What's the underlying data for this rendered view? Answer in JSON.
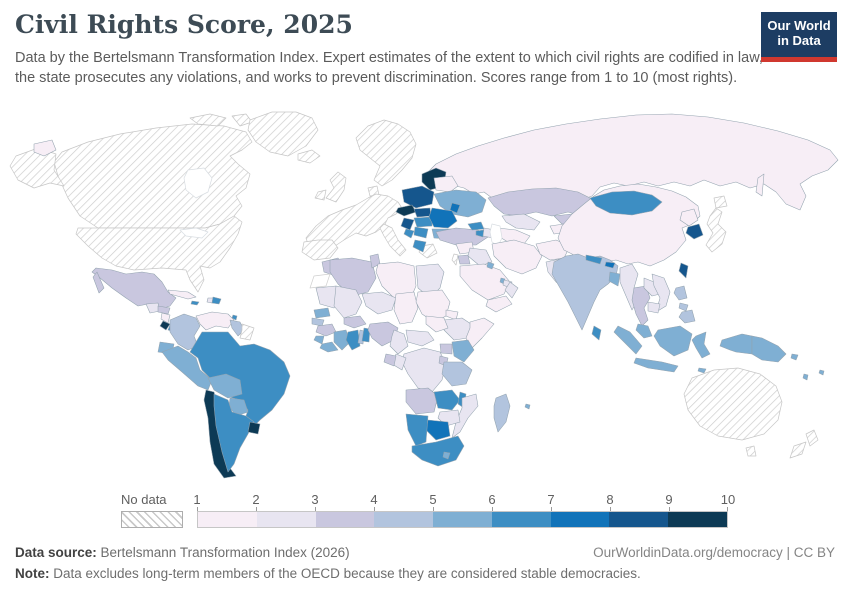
{
  "header": {
    "title": "Civil Rights Score, 2025",
    "subtitle": "Data by the Bertelsmann Transformation Index. Expert estimates of the extent to which civil rights are codified in law, the state prosecutes any violations, and works to prevent discrimination. Scores range from 1 to 10 (most rights).",
    "logo": {
      "line1": "Our World",
      "line2": "in Data",
      "bg_color": "#1d3d63",
      "accent_color": "#d0382f"
    }
  },
  "legend": {
    "no_data_label": "No data",
    "ticks": [
      "1",
      "2",
      "3",
      "4",
      "5",
      "6",
      "7",
      "8",
      "9",
      "10"
    ],
    "bins": [
      "1-2",
      "2-3",
      "3-4",
      "4-5",
      "5-6",
      "6-7",
      "7-8",
      "8-9",
      "9-10"
    ],
    "bin_colors": [
      "#f7eef6",
      "#e8e5f1",
      "#c9c7df",
      "#b2c4de",
      "#7fafd3",
      "#3d8ec3",
      "#1173b9",
      "#15568d",
      "#0d3a55"
    ]
  },
  "footer": {
    "source_label": "Data source:",
    "source_text": " Bertelsmann Transformation Index (2026)",
    "link_text": "OurWorldinData.org/democracy | CC BY",
    "note_label": "Note:",
    "note_text": " Data excludes long-term members of the OECD because they are considered stable democracies."
  },
  "chart_data": {
    "type": "choropleth",
    "title": "Civil Rights Score, 2025",
    "metric": "Civil rights score (1 to 10, most rights)",
    "scale_min": 1,
    "scale_max": 10,
    "no_data_style": "diagonal-hatch",
    "regions": {
      "canada": {
        "label": "Canada",
        "bin": "no_data"
      },
      "usa": {
        "label": "United States",
        "bin": "no_data"
      },
      "greenland": {
        "label": "Greenland",
        "bin": "no_data"
      },
      "mexico": {
        "label": "Mexico",
        "bin": "3-4"
      },
      "guatemala": {
        "label": "Guatemala",
        "bin": "2-3"
      },
      "honduras": {
        "label": "Honduras",
        "bin": "3-4"
      },
      "nicaragua": {
        "label": "Nicaragua",
        "bin": "1-2"
      },
      "costa-rica": {
        "label": "Costa Rica",
        "bin": "9-10"
      },
      "panama": {
        "label": "Panama",
        "bin": "6-7"
      },
      "cuba": {
        "label": "Cuba",
        "bin": "1-2"
      },
      "jamaica": {
        "label": "Jamaica",
        "bin": "6-7"
      },
      "haiti": {
        "label": "Haiti",
        "bin": "2-3"
      },
      "dominican-republic": {
        "label": "Dominican Republic",
        "bin": "6-7"
      },
      "trinidad": {
        "label": "Trinidad and Tobago",
        "bin": "6-7"
      },
      "colombia": {
        "label": "Colombia",
        "bin": "4-5"
      },
      "venezuela": {
        "label": "Venezuela",
        "bin": "1-2"
      },
      "guyana": {
        "label": "Guyana",
        "bin": "4-5"
      },
      "suriname": {
        "label": "Suriname",
        "bin": "no_data"
      },
      "ecuador": {
        "label": "Ecuador",
        "bin": "5-6"
      },
      "peru": {
        "label": "Peru",
        "bin": "5-6"
      },
      "brazil": {
        "label": "Brazil",
        "bin": "6-7"
      },
      "bolivia": {
        "label": "Bolivia",
        "bin": "5-6"
      },
      "paraguay": {
        "label": "Paraguay",
        "bin": "5-6"
      },
      "chile": {
        "label": "Chile",
        "bin": "9-10"
      },
      "argentina": {
        "label": "Argentina",
        "bin": "6-7"
      },
      "uruguay": {
        "label": "Uruguay",
        "bin": "9-10"
      },
      "iceland": {
        "label": "Iceland",
        "bin": "no_data"
      },
      "united-kingdom": {
        "label": "United Kingdom",
        "bin": "no_data"
      },
      "ireland": {
        "label": "Ireland",
        "bin": "no_data"
      },
      "scandinavia": {
        "label": "Scandinavia",
        "bin": "no_data"
      },
      "denmark": {
        "label": "Denmark",
        "bin": "no_data"
      },
      "western-europe": {
        "label": "Western Europe",
        "bin": "no_data"
      },
      "iberia": {
        "label": "Spain and Portugal",
        "bin": "no_data"
      },
      "italy": {
        "label": "Italy",
        "bin": "no_data"
      },
      "greece": {
        "label": "Greece",
        "bin": "no_data"
      },
      "baltics": {
        "label": "Estonia, Latvia, Lithuania",
        "bin": "9-10"
      },
      "poland": {
        "label": "Poland",
        "bin": "8-9"
      },
      "belarus": {
        "label": "Belarus",
        "bin": "1-2"
      },
      "ukraine": {
        "label": "Ukraine",
        "bin": "5-6"
      },
      "moldova": {
        "label": "Moldova",
        "bin": "7-8"
      },
      "czechia": {
        "label": "Czechia",
        "bin": "9-10"
      },
      "slovakia": {
        "label": "Slovakia",
        "bin": "8-9"
      },
      "hungary": {
        "label": "Hungary",
        "bin": "6-7"
      },
      "romania": {
        "label": "Romania",
        "bin": "7-8"
      },
      "bulgaria": {
        "label": "Bulgaria",
        "bin": "5-6"
      },
      "croatia": {
        "label": "Croatia",
        "bin": "8-9"
      },
      "bosnia": {
        "label": "Bosnia and Herzegovina",
        "bin": "6-7"
      },
      "serbia": {
        "label": "Serbia",
        "bin": "6-7"
      },
      "albania-macedonia": {
        "label": "Albania and North Macedonia",
        "bin": "6-7"
      },
      "russia": {
        "label": "Russia",
        "bin": "1-2"
      },
      "turkey": {
        "label": "Turkey",
        "bin": "3-4"
      },
      "georgia": {
        "label": "Georgia",
        "bin": "6-7"
      },
      "armenia": {
        "label": "Armenia",
        "bin": "6-7"
      },
      "azerbaijan": {
        "label": "Azerbaijan",
        "bin": "2-3"
      },
      "kazakhstan": {
        "label": "Kazakhstan",
        "bin": "3-4"
      },
      "uzbekistan": {
        "label": "Uzbekistan",
        "bin": "2-3"
      },
      "turkmenistan": {
        "label": "Turkmenistan",
        "bin": "1-2"
      },
      "kyrgyzstan": {
        "label": "Kyrgyzstan",
        "bin": "3-4"
      },
      "tajikistan": {
        "label": "Tajikistan",
        "bin": "1-2"
      },
      "afghanistan": {
        "label": "Afghanistan",
        "bin": "1-2"
      },
      "pakistan": {
        "label": "Pakistan",
        "bin": "2-3"
      },
      "iran": {
        "label": "Iran",
        "bin": "1-2"
      },
      "iraq": {
        "label": "Iraq",
        "bin": "2-3"
      },
      "syria": {
        "label": "Syria",
        "bin": "1-2"
      },
      "israel": {
        "label": "Israel",
        "bin": "no_data"
      },
      "jordan": {
        "label": "Jordan",
        "bin": "3-4"
      },
      "saudi-arabia": {
        "label": "Saudi Arabia",
        "bin": "1-2"
      },
      "kuwait": {
        "label": "Kuwait",
        "bin": "5-6"
      },
      "qatar": {
        "label": "Qatar",
        "bin": "5-6"
      },
      "uae": {
        "label": "United Arab Emirates",
        "bin": "2-3"
      },
      "oman": {
        "label": "Oman",
        "bin": "2-3"
      },
      "yemen": {
        "label": "Yemen",
        "bin": "1-2"
      },
      "morocco": {
        "label": "Morocco",
        "bin": "3-4"
      },
      "western-sahara": {
        "label": "Western Sahara",
        "bin": "blank"
      },
      "algeria": {
        "label": "Algeria",
        "bin": "3-4"
      },
      "tunisia": {
        "label": "Tunisia",
        "bin": "3-4"
      },
      "libya": {
        "label": "Libya",
        "bin": "1-2"
      },
      "egypt": {
        "label": "Egypt",
        "bin": "2-3"
      },
      "mauritania": {
        "label": "Mauritania",
        "bin": "2-3"
      },
      "mali": {
        "label": "Mali",
        "bin": "2-3"
      },
      "niger": {
        "label": "Niger",
        "bin": "2-3"
      },
      "chad": {
        "label": "Chad",
        "bin": "1-2"
      },
      "sudan": {
        "label": "Sudan",
        "bin": "1-2"
      },
      "south-sudan": {
        "label": "South Sudan",
        "bin": "1-2"
      },
      "eritrea": {
        "label": "Eritrea",
        "bin": "1-2"
      },
      "ethiopia": {
        "label": "Ethiopia",
        "bin": "2-3"
      },
      "somalia": {
        "label": "Somalia",
        "bin": "1-2"
      },
      "senegal": {
        "label": "Senegal",
        "bin": "5-6"
      },
      "gambia": {
        "label": "The Gambia",
        "bin": "4-5"
      },
      "guinea": {
        "label": "Guinea",
        "bin": "3-4"
      },
      "sierra-leone": {
        "label": "Sierra Leone",
        "bin": "5-6"
      },
      "liberia": {
        "label": "Liberia",
        "bin": "5-6"
      },
      "ivory-coast": {
        "label": "Cote d'Ivoire",
        "bin": "5-6"
      },
      "ghana": {
        "label": "Ghana",
        "bin": "6-7"
      },
      "togo": {
        "label": "Togo",
        "bin": "4-5"
      },
      "benin": {
        "label": "Benin",
        "bin": "6-7"
      },
      "burkina-faso": {
        "label": "Burkina Faso",
        "bin": "3-4"
      },
      "nigeria": {
        "label": "Nigeria",
        "bin": "3-4"
      },
      "cameroon": {
        "label": "Cameroon",
        "bin": "2-3"
      },
      "central-african-republic": {
        "label": "Central African Republic",
        "bin": "2-3"
      },
      "drc": {
        "label": "Democratic Republic of Congo",
        "bin": "2-3"
      },
      "congo": {
        "label": "Congo",
        "bin": "2-3"
      },
      "gabon": {
        "label": "Gabon",
        "bin": "3-4"
      },
      "uganda": {
        "label": "Uganda",
        "bin": "3-4"
      },
      "kenya": {
        "label": "Kenya",
        "bin": "5-6"
      },
      "rwanda-burundi": {
        "label": "Rwanda and Burundi",
        "bin": "3-4"
      },
      "tanzania": {
        "label": "Tanzania",
        "bin": "4-5"
      },
      "angola": {
        "label": "Angola",
        "bin": "3-4"
      },
      "zambia": {
        "label": "Zambia",
        "bin": "6-7"
      },
      "malawi": {
        "label": "Malawi",
        "bin": "6-7"
      },
      "mozambique": {
        "label": "Mozambique",
        "bin": "2-3"
      },
      "zimbabwe": {
        "label": "Zimbabwe",
        "bin": "2-3"
      },
      "botswana": {
        "label": "Botswana",
        "bin": "7-8"
      },
      "namibia": {
        "label": "Namibia",
        "bin": "6-7"
      },
      "south-africa": {
        "label": "South Africa",
        "bin": "6-7"
      },
      "lesotho": {
        "label": "Lesotho",
        "bin": "5-6"
      },
      "madagascar": {
        "label": "Madagascar",
        "bin": "4-5"
      },
      "mauritius": {
        "label": "Mauritius",
        "bin": "5-6"
      },
      "india": {
        "label": "India",
        "bin": "4-5"
      },
      "nepal": {
        "label": "Nepal",
        "bin": "6-7"
      },
      "bhutan": {
        "label": "Bhutan",
        "bin": "7-8"
      },
      "bangladesh": {
        "label": "Bangladesh",
        "bin": "5-6"
      },
      "sri-lanka": {
        "label": "Sri Lanka",
        "bin": "6-7"
      },
      "china": {
        "label": "China",
        "bin": "1-2"
      },
      "mongolia": {
        "label": "Mongolia",
        "bin": "6-7"
      },
      "north-korea": {
        "label": "North Korea",
        "bin": "1-2"
      },
      "south-korea": {
        "label": "South Korea",
        "bin": "8-9"
      },
      "japan": {
        "label": "Japan",
        "bin": "no_data"
      },
      "taiwan": {
        "label": "Taiwan",
        "bin": "8-9"
      },
      "myanmar": {
        "label": "Myanmar",
        "bin": "2-3"
      },
      "thailand": {
        "label": "Thailand",
        "bin": "3-4"
      },
      "laos": {
        "label": "Laos",
        "bin": "2-3"
      },
      "vietnam": {
        "label": "Vietnam",
        "bin": "2-3"
      },
      "cambodia": {
        "label": "Cambodia",
        "bin": "2-3"
      },
      "malaysia": {
        "label": "Malaysia",
        "bin": "5-6"
      },
      "indonesia": {
        "label": "Indonesia",
        "bin": "5-6"
      },
      "timor": {
        "label": "Timor-Leste",
        "bin": "5-6"
      },
      "philippines": {
        "label": "Philippines",
        "bin": "4-5"
      },
      "papua-new-guinea": {
        "label": "Papua New Guinea",
        "bin": "5-6"
      },
      "solomon-islands": {
        "label": "Solomon Islands",
        "bin": "5-6"
      },
      "vanuatu": {
        "label": "Vanuatu",
        "bin": "5-6"
      },
      "fiji": {
        "label": "Fiji",
        "bin": "5-6"
      },
      "australia": {
        "label": "Australia",
        "bin": "no_data"
      },
      "new-zealand": {
        "label": "New Zealand",
        "bin": "no_data"
      },
      "hudson-bay": {
        "label": "Hudson Bay",
        "bin": "water"
      },
      "great-lakes": {
        "label": "Great Lakes",
        "bin": "water"
      },
      "caspian-sea": {
        "label": "Caspian Sea",
        "bin": "water"
      }
    }
  }
}
